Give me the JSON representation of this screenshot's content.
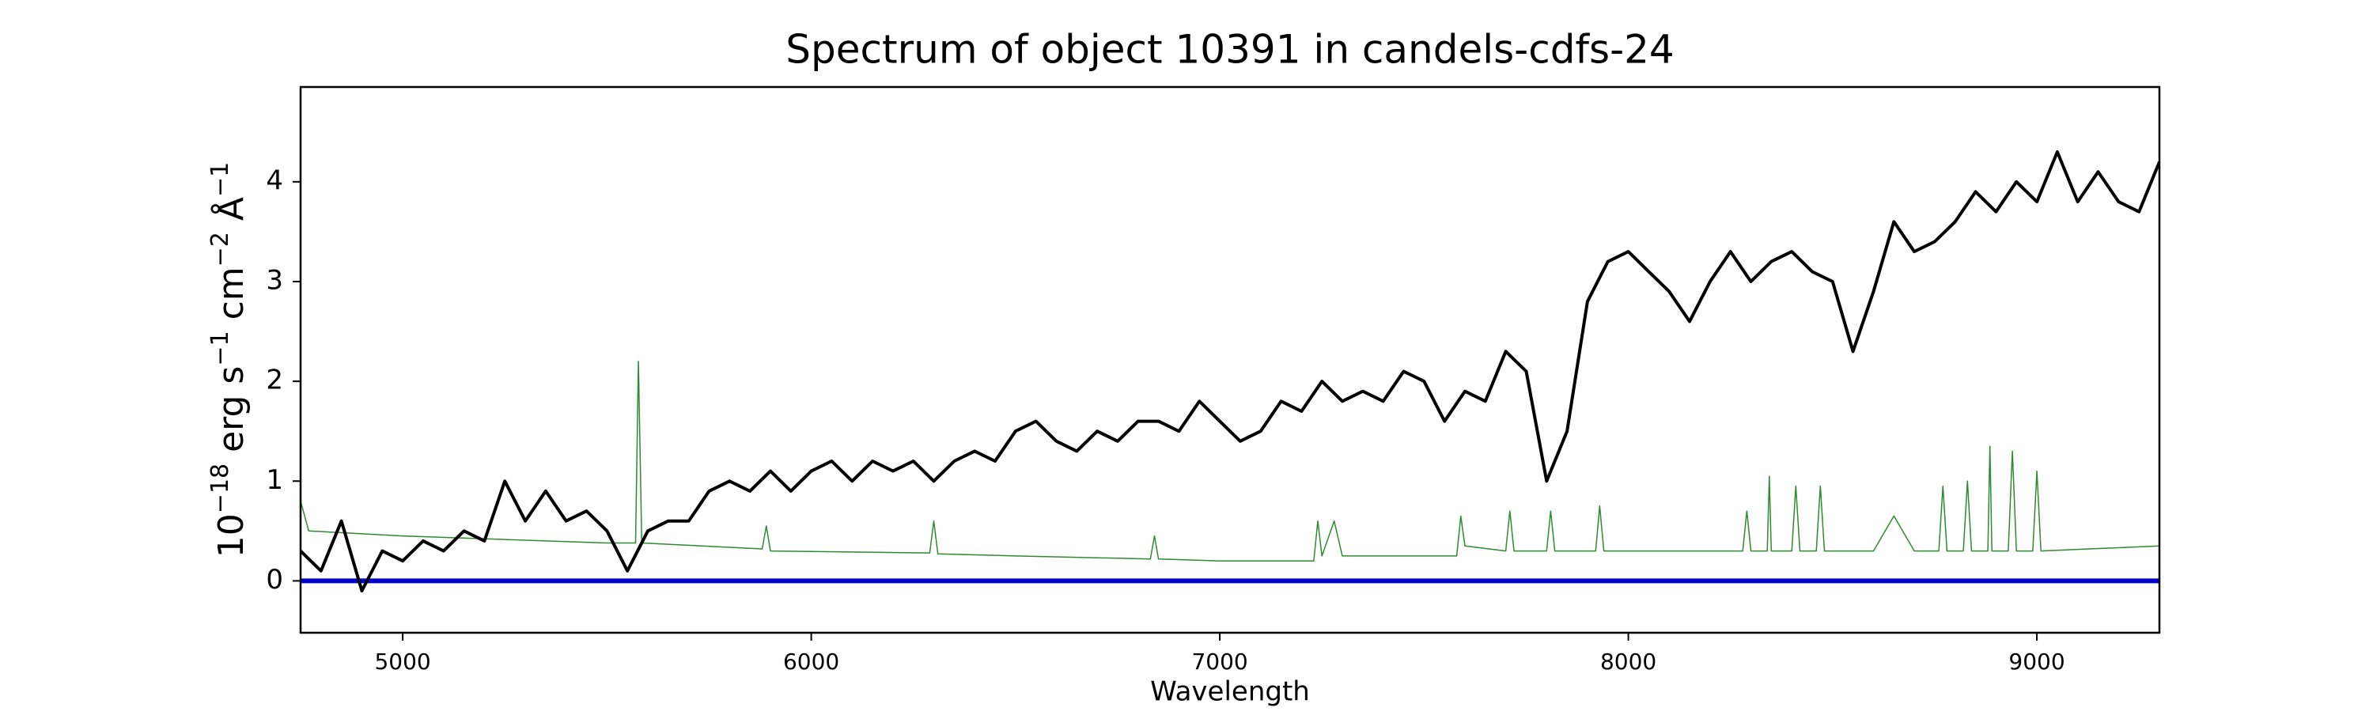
{
  "chart_data": {
    "type": "line",
    "title": "Spectrum of object 10391 in candels-cdfs-24",
    "xlabel": "Wavelength",
    "ylabel": [
      "10",
      "−18",
      " erg s",
      "−1",
      " cm",
      "−2",
      " Å",
      "−1"
    ],
    "xlim": [
      4750,
      9300
    ],
    "xticks": [
      5000,
      6000,
      7000,
      8000,
      9000
    ],
    "ylim": [
      -0.52,
      4.95
    ],
    "yticks": [
      0,
      1,
      2,
      3,
      4
    ],
    "grid": false,
    "series": [
      {
        "color": "#2e8b2e",
        "width": 1.5,
        "x": [
          4750,
          4770,
          5000,
          5500,
          5570,
          5577,
          5585,
          5880,
          5890,
          5900,
          6290,
          6300,
          6310,
          6500,
          6830,
          6840,
          6850,
          7000,
          7230,
          7240,
          7250,
          7280,
          7300,
          7580,
          7590,
          7600,
          7700,
          7710,
          7720,
          7800,
          7810,
          7820,
          7920,
          7930,
          7940,
          8000,
          8280,
          8290,
          8300,
          8340,
          8345,
          8350,
          8400,
          8410,
          8420,
          8460,
          8470,
          8480,
          8600,
          8650,
          8700,
          8760,
          8770,
          8780,
          8820,
          8830,
          8840,
          8880,
          8885,
          8890,
          8930,
          8940,
          8950,
          8990,
          9000,
          9010,
          9300
        ],
        "values": [
          0.8,
          0.5,
          0.45,
          0.38,
          0.38,
          2.2,
          0.38,
          0.32,
          0.55,
          0.3,
          0.28,
          0.6,
          0.27,
          0.25,
          0.22,
          0.45,
          0.22,
          0.2,
          0.2,
          0.6,
          0.25,
          0.6,
          0.25,
          0.25,
          0.65,
          0.35,
          0.3,
          0.7,
          0.3,
          0.3,
          0.7,
          0.3,
          0.3,
          0.75,
          0.3,
          0.3,
          0.3,
          0.7,
          0.3,
          0.3,
          1.05,
          0.3,
          0.3,
          0.95,
          0.3,
          0.3,
          0.95,
          0.3,
          0.3,
          0.65,
          0.3,
          0.3,
          0.95,
          0.3,
          0.3,
          1.0,
          0.3,
          0.3,
          1.35,
          0.3,
          0.3,
          1.3,
          0.3,
          0.3,
          1.1,
          0.3,
          0.35
        ]
      },
      {
        "color": "#0000cc",
        "width": 6,
        "x": [
          4750,
          9300
        ],
        "values": [
          0,
          0
        ]
      },
      {
        "color": "#000000",
        "width": 4,
        "x": [
          4750,
          4800,
          4850,
          4900,
          4950,
          5000,
          5050,
          5100,
          5150,
          5200,
          5250,
          5300,
          5350,
          5400,
          5450,
          5500,
          5550,
          5600,
          5650,
          5700,
          5750,
          5800,
          5850,
          5900,
          5950,
          6000,
          6050,
          6100,
          6150,
          6200,
          6250,
          6300,
          6350,
          6400,
          6450,
          6500,
          6550,
          6600,
          6650,
          6700,
          6750,
          6800,
          6850,
          6900,
          6950,
          7000,
          7050,
          7100,
          7150,
          7200,
          7250,
          7300,
          7350,
          7400,
          7450,
          7500,
          7550,
          7600,
          7650,
          7700,
          7750,
          7800,
          7850,
          7900,
          7950,
          8000,
          8050,
          8100,
          8150,
          8200,
          8250,
          8300,
          8350,
          8400,
          8450,
          8500,
          8550,
          8600,
          8650,
          8700,
          8750,
          8800,
          8850,
          8900,
          8950,
          9000,
          9050,
          9100,
          9150,
          9200,
          9250,
          9300
        ],
        "values": [
          0.3,
          0.1,
          0.6,
          -0.1,
          0.3,
          0.2,
          0.4,
          0.3,
          0.5,
          0.4,
          1.0,
          0.6,
          0.9,
          0.6,
          0.7,
          0.5,
          0.1,
          0.5,
          0.6,
          0.6,
          0.9,
          1.0,
          0.9,
          1.1,
          0.9,
          1.1,
          1.2,
          1.0,
          1.2,
          1.1,
          1.2,
          1.0,
          1.2,
          1.3,
          1.2,
          1.5,
          1.6,
          1.4,
          1.3,
          1.5,
          1.4,
          1.6,
          1.6,
          1.5,
          1.8,
          1.6,
          1.4,
          1.5,
          1.8,
          1.7,
          2.0,
          1.8,
          1.9,
          1.8,
          2.1,
          2.0,
          1.6,
          1.9,
          1.8,
          2.3,
          2.1,
          1.0,
          1.5,
          2.8,
          3.2,
          3.3,
          3.1,
          2.9,
          2.6,
          3.0,
          3.3,
          3.0,
          3.2,
          3.3,
          3.1,
          3.0,
          2.3,
          2.9,
          3.6,
          3.3,
          3.4,
          3.6,
          3.9,
          3.7,
          4.0,
          3.8,
          4.3,
          3.8,
          4.1,
          3.8,
          3.7,
          4.2
        ]
      }
    ]
  }
}
